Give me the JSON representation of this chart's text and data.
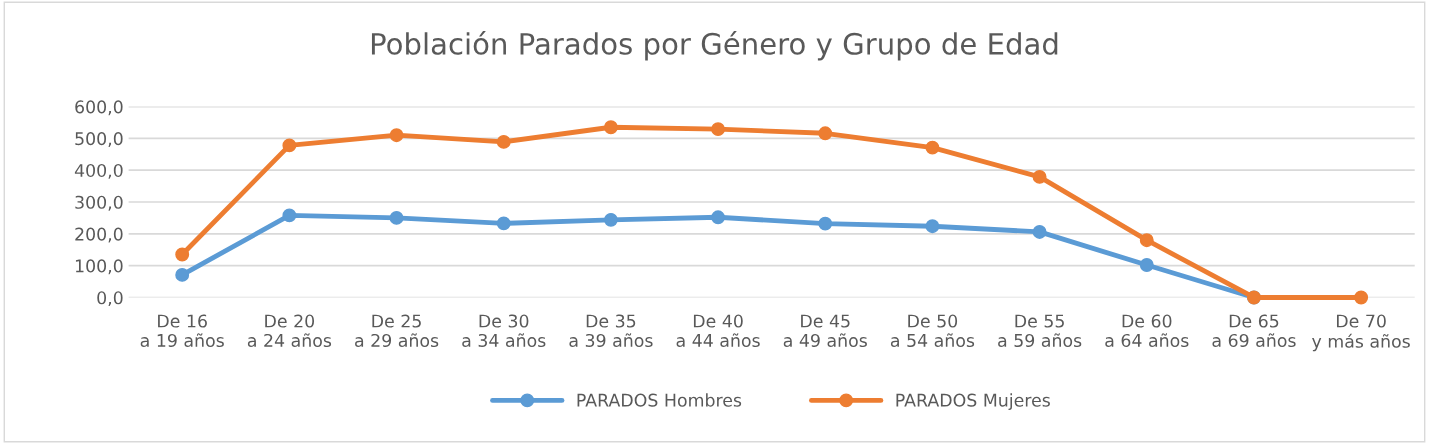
{
  "chart_data": {
    "type": "line",
    "title": "Población Parados por Género y Grupo de Edad",
    "categories": [
      "De 16\na 19 años",
      "De 20\na 24 años",
      "De 25\na 29 años",
      "De 30\na 34 años",
      "De 35\na 39 años",
      "De 40\na 44 años",
      "De 45\na 49 años",
      "De 50\na 54 años",
      "De 55\na 59 años",
      "De 60\na 64 años",
      "De 65\na 69 años",
      "De 70\ny más años"
    ],
    "series": [
      {
        "name": "PARADOS Hombres",
        "color": "#5b9bd5",
        "values": [
          71,
          258,
          250,
          233,
          244,
          252,
          232,
          224,
          206,
          102,
          0,
          null
        ]
      },
      {
        "name": "PARADOS Mujeres",
        "color": "#ed7d31",
        "values": [
          135,
          478,
          510,
          489,
          535,
          529,
          516,
          471,
          379,
          180,
          0,
          0
        ]
      }
    ],
    "ylim": [
      0,
      600
    ],
    "yticks": [
      {
        "value": 0,
        "label": "0,0"
      },
      {
        "value": 100,
        "label": "100,0"
      },
      {
        "value": 200,
        "label": "200,0"
      },
      {
        "value": 300,
        "label": "300,0"
      },
      {
        "value": 400,
        "label": "400,0"
      },
      {
        "value": 500,
        "label": "500,0"
      },
      {
        "value": 600,
        "label": "600,0"
      }
    ],
    "grid": "y",
    "legend": "bottom",
    "marker": "circle",
    "line_style": "solid"
  }
}
